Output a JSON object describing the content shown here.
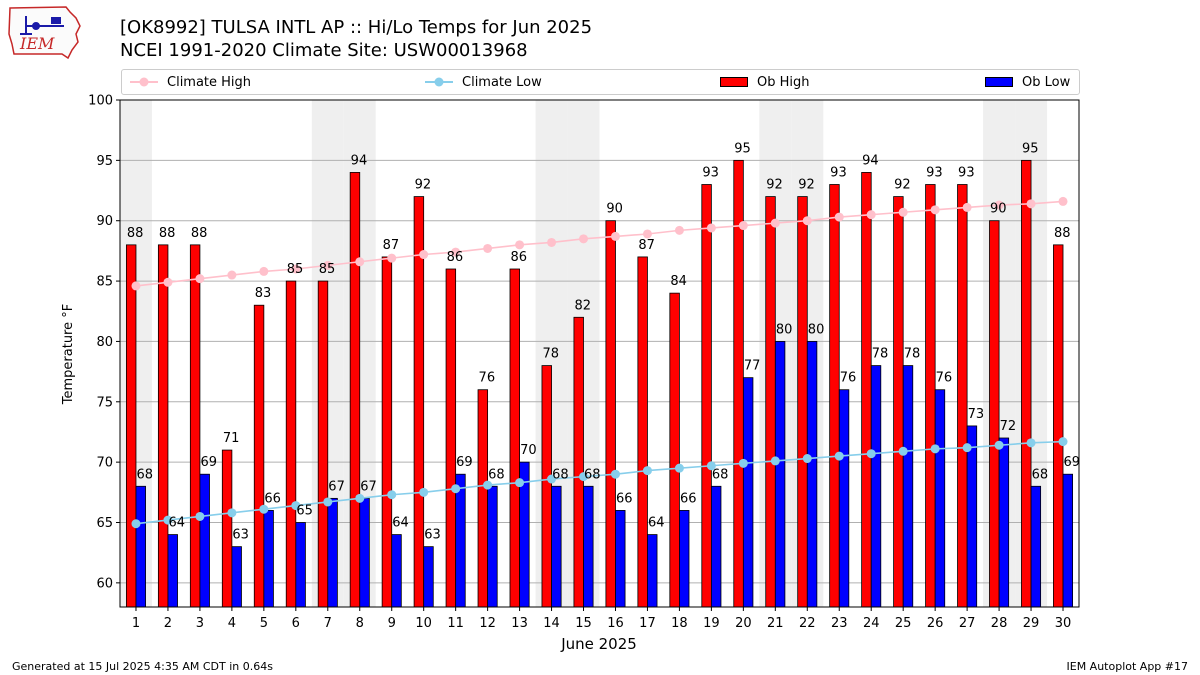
{
  "header": {
    "title_line1": "[OK8992] TULSA INTL AP :: Hi/Lo Temps for Jun 2025",
    "title_line2": "NCEI 1991-2020 Climate Site: USW00013968",
    "logo_text": "IEM"
  },
  "footer": {
    "generated": "Generated at 15 Jul 2025 4:35 AM CDT in 0.64s",
    "app": "IEM Autoplot App #17"
  },
  "colors": {
    "ob_high": "#ff0000",
    "ob_low": "#0000ff",
    "climate_high": "#ffc0cb",
    "climate_low": "#87ceeb",
    "weekend_band": "#efefef"
  },
  "chart_data": {
    "type": "bar",
    "xlabel": "June 2025",
    "ylabel": "Temperature °F",
    "ylim": [
      58,
      100
    ],
    "xlim": [
      0.5,
      30.5
    ],
    "yticks": [
      60,
      65,
      70,
      75,
      80,
      85,
      90,
      95,
      100
    ],
    "grid": "horizontal",
    "legend_position": "top",
    "categories": [
      "1",
      "2",
      "3",
      "4",
      "5",
      "6",
      "7",
      "8",
      "9",
      "10",
      "11",
      "12",
      "13",
      "14",
      "15",
      "16",
      "17",
      "18",
      "19",
      "20",
      "21",
      "22",
      "23",
      "24",
      "25",
      "26",
      "27",
      "28",
      "29",
      "30"
    ],
    "weekend_days": [
      1,
      7,
      8,
      14,
      15,
      21,
      22,
      28,
      29
    ],
    "series": [
      {
        "name": "Ob High",
        "type": "bar",
        "values": [
          88,
          88,
          88,
          71,
          83,
          85,
          85,
          94,
          87,
          92,
          86,
          76,
          86,
          78,
          82,
          90,
          87,
          84,
          93,
          95,
          92,
          92,
          93,
          94,
          92,
          93,
          93,
          90,
          95,
          88
        ]
      },
      {
        "name": "Ob Low",
        "type": "bar",
        "values": [
          68,
          64,
          69,
          63,
          66,
          65,
          67,
          67,
          64,
          63,
          69,
          68,
          70,
          68,
          68,
          66,
          64,
          66,
          68,
          77,
          80,
          80,
          76,
          78,
          78,
          76,
          73,
          72,
          68,
          69
        ]
      },
      {
        "name": "Climate High",
        "type": "line",
        "values": [
          84.6,
          84.9,
          85.2,
          85.5,
          85.8,
          86.0,
          86.3,
          86.6,
          86.9,
          87.2,
          87.4,
          87.7,
          88.0,
          88.2,
          88.5,
          88.7,
          88.9,
          89.2,
          89.4,
          89.6,
          89.8,
          90.0,
          90.3,
          90.5,
          90.7,
          90.9,
          91.1,
          91.3,
          91.4,
          91.6
        ]
      },
      {
        "name": "Climate Low",
        "type": "line",
        "values": [
          64.9,
          65.2,
          65.5,
          65.8,
          66.1,
          66.4,
          66.7,
          67.0,
          67.3,
          67.5,
          67.8,
          68.1,
          68.3,
          68.6,
          68.8,
          69.0,
          69.3,
          69.5,
          69.7,
          69.9,
          70.1,
          70.3,
          70.5,
          70.7,
          70.9,
          71.1,
          71.2,
          71.4,
          71.6,
          71.7
        ]
      }
    ]
  }
}
